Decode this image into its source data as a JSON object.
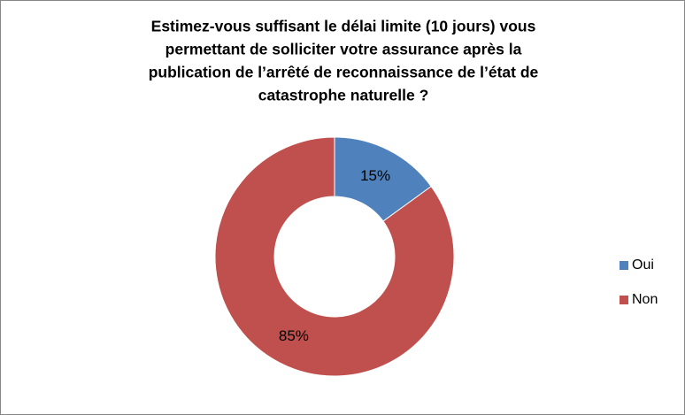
{
  "chart_data": {
    "type": "donut",
    "title": [
      "Estimez-vous suffisant le délai limite (10 jours) vous",
      "permettant de solliciter votre assurance après la",
      "publication de l’arrêté de reconnaissance de l’état de",
      "catastrophe naturelle ?"
    ],
    "categories": [
      "Oui",
      "Non"
    ],
    "values": [
      15,
      85
    ],
    "value_labels": [
      "15%",
      "85%"
    ],
    "colors": [
      "#4f81bd",
      "#c0504d"
    ],
    "legend": "right"
  }
}
